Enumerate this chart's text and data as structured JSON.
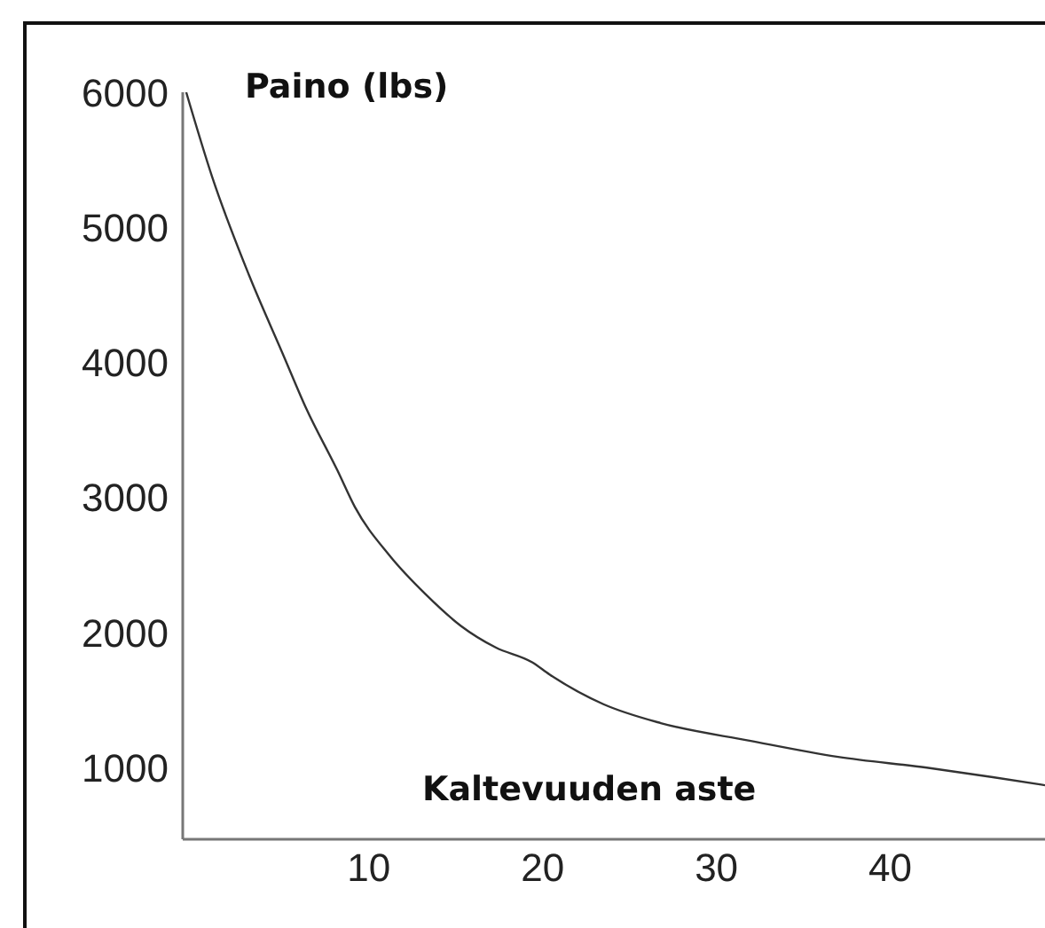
{
  "chart_data": {
    "type": "line",
    "ylabel": "Paino (lbs)",
    "xlabel": "Kaltevuuden aste",
    "x": [
      -0.5,
      1.0,
      3.1,
      5.1,
      6.4,
      8.2,
      9.2,
      11.2,
      13.3,
      15.3,
      17.3,
      19.4,
      20.4,
      23.5,
      26.8,
      31.9,
      37.0,
      42.1,
      45.9,
      48.9
    ],
    "series": [
      {
        "color": "#333333",
        "values": [
          6000,
          5370,
          4650,
          4050,
          3660,
          3200,
          2930,
          2570,
          2280,
          2050,
          1890,
          1780,
          1690,
          1470,
          1330,
          1200,
          1080,
          1000,
          930,
          870
        ]
      }
    ],
    "xlim": [
      -0.7,
      48.9
    ],
    "xticks": [
      10,
      20,
      30,
      40
    ],
    "ylim": [
      470,
      6000
    ],
    "yticks": [
      1000,
      2000,
      3000,
      4000,
      5000,
      6000
    ],
    "grid": false,
    "marker": "none",
    "line_style": "solid"
  }
}
